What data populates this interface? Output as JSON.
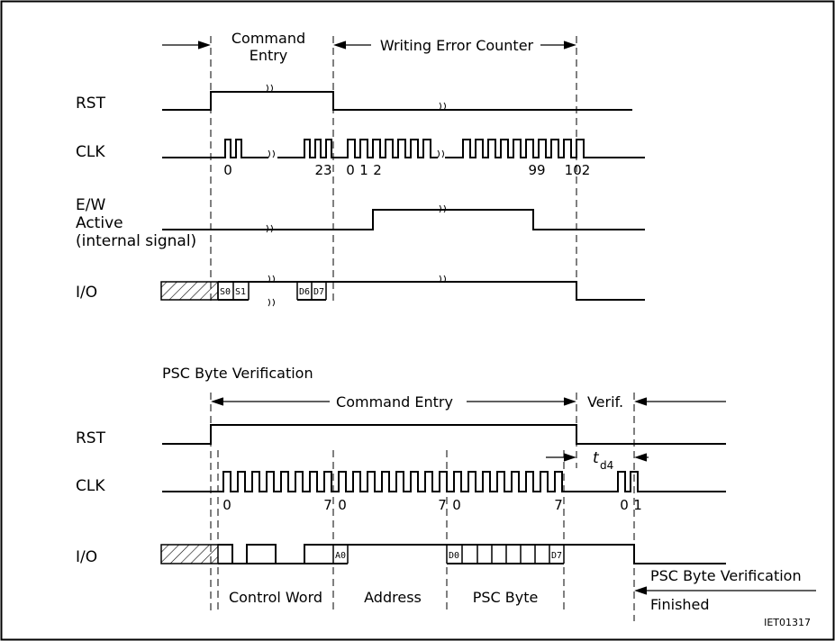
{
  "top": {
    "phase_command_line1": "Command",
    "phase_command_line2": "Entry",
    "phase_writing": "Writing Error Counter",
    "signal_rst": "RST",
    "signal_clk": "CLK",
    "signal_ew_line1": "E/W",
    "signal_ew_line2": "Active",
    "signal_ew_line3": "(internal signal)",
    "signal_io": "I/O",
    "clk_label_0": "0",
    "clk_label_23": "23",
    "clk_label_w0": "0",
    "clk_label_w1": "1",
    "clk_label_w2": "2",
    "clk_label_99": "99",
    "clk_label_102": "102",
    "io_s0": "S0",
    "io_s1": "S1",
    "io_d6": "D6",
    "io_d7": "D7"
  },
  "bottom": {
    "section_title": "PSC Byte Verification",
    "phase_command": "Command Entry",
    "phase_verif": "Verif.",
    "signal_rst": "RST",
    "signal_clk": "CLK",
    "signal_io": "I/O",
    "td4_t": "t",
    "td4_sub": "d4",
    "clk_label_0a": "0",
    "clk_label_7a": "7",
    "clk_label_0b": "0",
    "clk_label_7b": "7",
    "clk_label_0c": "0",
    "clk_label_7c": "7",
    "clk_label_v0": "0",
    "clk_label_v1": "1",
    "io_a0": "A0",
    "io_d0": "D0",
    "io_d7": "D7",
    "field_control_word": "Control Word",
    "field_address": "Address",
    "field_psc_byte": "PSC Byte",
    "finished_line1": "PSC Byte Verification",
    "finished_line2": "Finished"
  },
  "figure_code": "IET01317"
}
